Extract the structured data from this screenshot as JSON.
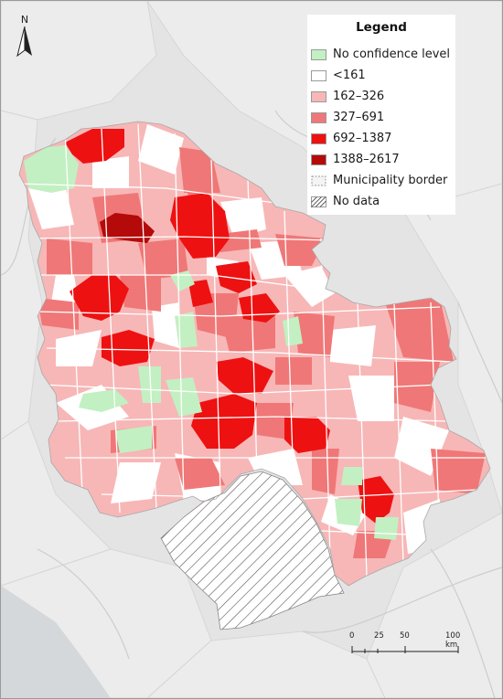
{
  "map": {
    "north_label": "N",
    "legend": {
      "title": "Legend",
      "items": [
        {
          "label": "No confidence level",
          "color": "#c2f0c2",
          "kind": "fill"
        },
        {
          "label": "<161",
          "color": "#ffffff",
          "kind": "fill"
        },
        {
          "label": "162–326",
          "color": "#f7b7b7",
          "kind": "fill"
        },
        {
          "label": "327–691",
          "color": "#f07777",
          "kind": "fill"
        },
        {
          "label": "692–1387",
          "color": "#ee1111",
          "kind": "fill"
        },
        {
          "label": "1388–2617",
          "color": "#b40a0a",
          "kind": "fill"
        },
        {
          "label": "Municipality border",
          "color": "#ffffff",
          "kind": "border"
        },
        {
          "label": "No data",
          "color": "#ffffff",
          "kind": "hatch"
        }
      ]
    },
    "scale_bar": {
      "ticks": [
        "0",
        "25",
        "50",
        "100 km"
      ]
    },
    "colors": {
      "background": "#e4e4e4",
      "neighbor_fill": "#ececec",
      "neighbor_border": "#d6d6d6",
      "municipality_border": "#ffffff",
      "hatch_line": "#555555"
    }
  }
}
